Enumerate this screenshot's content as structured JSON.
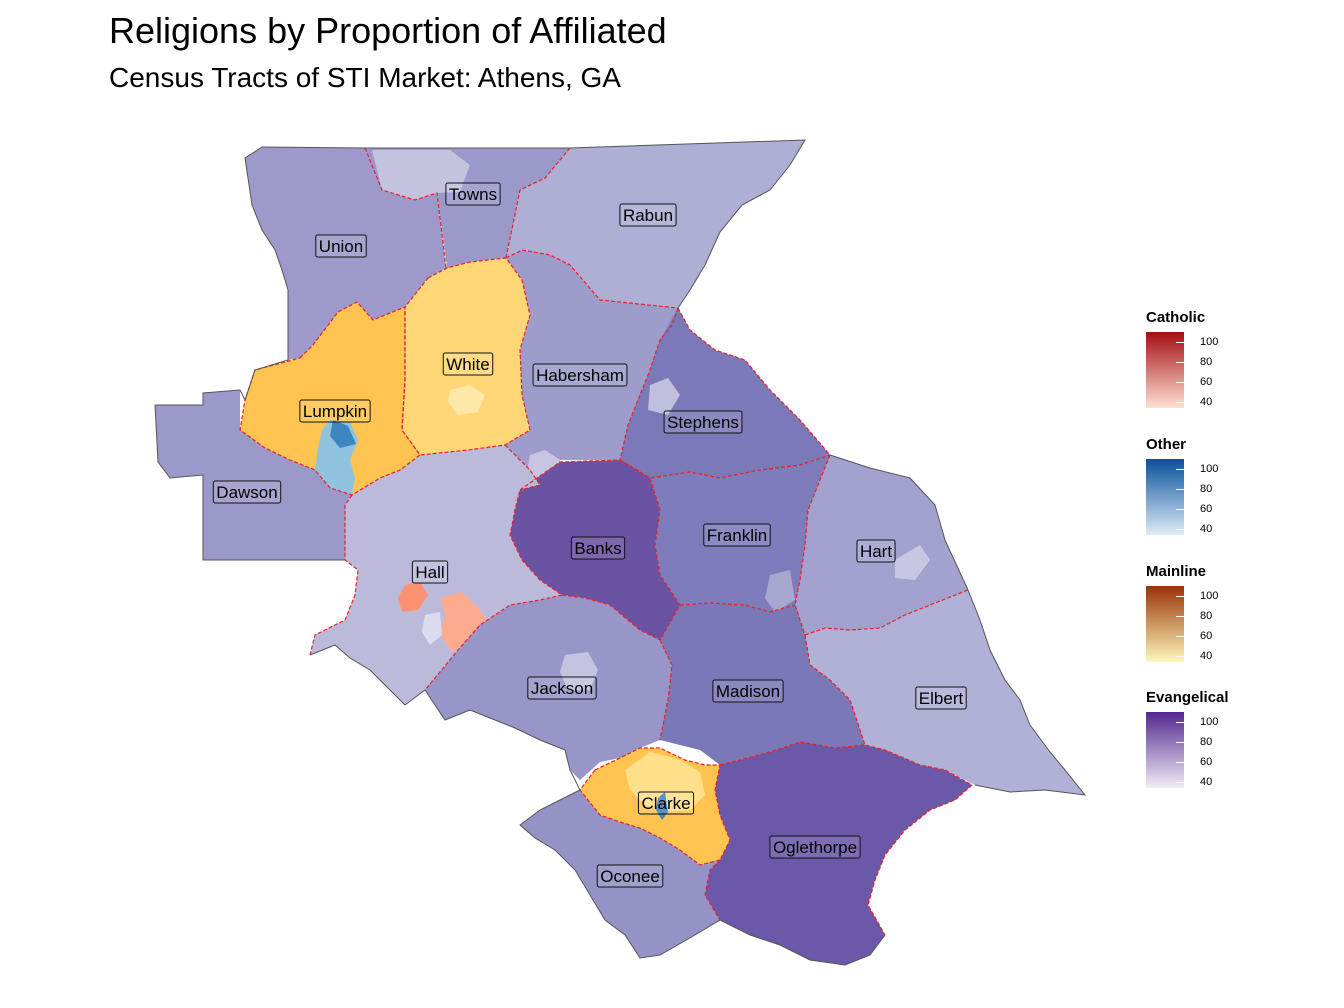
{
  "title": "Religions by Proportion of Affiliated",
  "subtitle": "Census Tracts of STI Market: Athens, GA",
  "counties": [
    {
      "name": "Towns",
      "category": "Evangelical"
    },
    {
      "name": "Rabun",
      "category": "Evangelical"
    },
    {
      "name": "Union",
      "category": "Evangelical"
    },
    {
      "name": "White",
      "category": "Mainline"
    },
    {
      "name": "Habersham",
      "category": "Evangelical"
    },
    {
      "name": "Lumpkin",
      "category": "Mainline"
    },
    {
      "name": "Stephens",
      "category": "Evangelical"
    },
    {
      "name": "Dawson",
      "category": "Evangelical"
    },
    {
      "name": "Banks",
      "category": "Evangelical"
    },
    {
      "name": "Franklin",
      "category": "Evangelical"
    },
    {
      "name": "Hart",
      "category": "Evangelical"
    },
    {
      "name": "Hall",
      "category": "Evangelical"
    },
    {
      "name": "Jackson",
      "category": "Evangelical"
    },
    {
      "name": "Madison",
      "category": "Evangelical"
    },
    {
      "name": "Elbert",
      "category": "Evangelical"
    },
    {
      "name": "Clarke",
      "category": "Mainline"
    },
    {
      "name": "Oglethorpe",
      "category": "Evangelical"
    },
    {
      "name": "Oconee",
      "category": "Evangelical"
    }
  ],
  "legends": [
    {
      "title": "Catholic",
      "ticks": [
        "100",
        "80",
        "60",
        "40"
      ],
      "color_low": "#fee0d2",
      "color_high": "#a50f15"
    },
    {
      "title": "Other",
      "ticks": [
        "100",
        "80",
        "60",
        "40"
      ],
      "color_low": "#deebf7",
      "color_high": "#08519c"
    },
    {
      "title": "Mainline",
      "ticks": [
        "100",
        "80",
        "60",
        "40"
      ],
      "color_low": "#fff7bc",
      "color_high": "#993404"
    },
    {
      "title": "Evangelical",
      "ticks": [
        "100",
        "80",
        "60",
        "40"
      ],
      "color_low": "#efedf5",
      "color_high": "#54278f"
    }
  ],
  "colors": {
    "boundary": "#e8202a",
    "outline": "#555555",
    "evangelical_light": "#b3b3d6",
    "evangelical_mid": "#9c9acb",
    "evangelical_dark": "#6a51a3",
    "mainline": "#fec44f",
    "mainline_light": "#fed676",
    "other": "#8fc3e0",
    "catholic": "#fca486"
  }
}
